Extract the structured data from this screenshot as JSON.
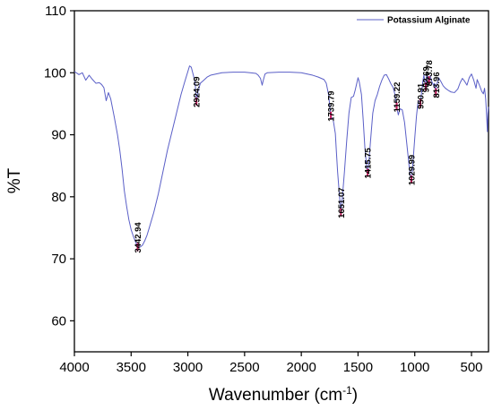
{
  "chart_data": {
    "type": "line",
    "title": "",
    "xlabel_main": "Wavenumber (cm",
    "xlabel_sup": "-1",
    "xlabel_close": ")",
    "ylabel": "%T",
    "xlim": [
      4000,
      350
    ],
    "ylim": [
      55,
      110
    ],
    "x_ticks": [
      4000,
      3500,
      3000,
      2500,
      2000,
      1500,
      1000,
      500
    ],
    "y_ticks": [
      60,
      70,
      80,
      90,
      100,
      110
    ],
    "grid": false,
    "legend_position": "top-right",
    "series": [
      {
        "name": "Potassium Alginate",
        "color": "#5a5fc7",
        "points": [
          [
            4000,
            100.2
          ],
          [
            3960,
            99.7
          ],
          [
            3930,
            100.0
          ],
          [
            3900,
            98.8
          ],
          [
            3870,
            99.6
          ],
          [
            3840,
            98.9
          ],
          [
            3810,
            98.3
          ],
          [
            3780,
            98.4
          ],
          [
            3760,
            98.1
          ],
          [
            3740,
            97.6
          ],
          [
            3720,
            95.5
          ],
          [
            3700,
            96.8
          ],
          [
            3680,
            95.8
          ],
          [
            3650,
            93.0
          ],
          [
            3620,
            90.0
          ],
          [
            3600,
            87.5
          ],
          [
            3580,
            84.5
          ],
          [
            3560,
            81.0
          ],
          [
            3540,
            78.5
          ],
          [
            3520,
            76.3
          ],
          [
            3500,
            74.7
          ],
          [
            3480,
            73.6
          ],
          [
            3460,
            72.7
          ],
          [
            3442.94,
            71.8
          ],
          [
            3420,
            71.9
          ],
          [
            3400,
            72.2
          ],
          [
            3380,
            72.9
          ],
          [
            3360,
            73.8
          ],
          [
            3340,
            75.0
          ],
          [
            3300,
            77.5
          ],
          [
            3260,
            80.5
          ],
          [
            3220,
            84.0
          ],
          [
            3180,
            87.5
          ],
          [
            3140,
            90.5
          ],
          [
            3100,
            93.5
          ],
          [
            3060,
            96.5
          ],
          [
            3030,
            98.4
          ],
          [
            3000,
            100.2
          ],
          [
            2985,
            101.1
          ],
          [
            2970,
            100.9
          ],
          [
            2950,
            99.5
          ],
          [
            2935,
            98.2
          ],
          [
            2924.09,
            95.3
          ],
          [
            2910,
            97.0
          ],
          [
            2890,
            98.3
          ],
          [
            2860,
            98.8
          ],
          [
            2830,
            99.3
          ],
          [
            2800,
            99.6
          ],
          [
            2700,
            100.0
          ],
          [
            2600,
            100.1
          ],
          [
            2500,
            100.1
          ],
          [
            2450,
            100.0
          ],
          [
            2400,
            99.9
          ],
          [
            2380,
            99.6
          ],
          [
            2360,
            99.1
          ],
          [
            2345,
            98.0
          ],
          [
            2335,
            98.8
          ],
          [
            2320,
            99.8
          ],
          [
            2300,
            100.0
          ],
          [
            2200,
            100.1
          ],
          [
            2100,
            100.1
          ],
          [
            2000,
            100.0
          ],
          [
            1950,
            99.8
          ],
          [
            1900,
            99.6
          ],
          [
            1850,
            99.3
          ],
          [
            1800,
            98.9
          ],
          [
            1780,
            98.3
          ],
          [
            1760,
            96.5
          ],
          [
            1739.79,
            93.0
          ],
          [
            1720,
            92.5
          ],
          [
            1700,
            90.2
          ],
          [
            1690,
            87.0
          ],
          [
            1680,
            84.0
          ],
          [
            1665,
            80.5
          ],
          [
            1651.07,
            77.4
          ],
          [
            1640,
            79.5
          ],
          [
            1620,
            84.0
          ],
          [
            1600,
            89.0
          ],
          [
            1580,
            93.5
          ],
          [
            1560,
            96.0
          ],
          [
            1540,
            96.2
          ],
          [
            1525,
            97.2
          ],
          [
            1510,
            98.4
          ],
          [
            1500,
            99.2
          ],
          [
            1490,
            98.6
          ],
          [
            1470,
            96.5
          ],
          [
            1455,
            92.5
          ],
          [
            1440,
            88.0
          ],
          [
            1425,
            85.0
          ],
          [
            1415.75,
            83.8
          ],
          [
            1405,
            85.5
          ],
          [
            1390,
            89.0
          ],
          [
            1370,
            93.5
          ],
          [
            1350,
            95.5
          ],
          [
            1330,
            96.5
          ],
          [
            1310,
            97.8
          ],
          [
            1290,
            98.8
          ],
          [
            1270,
            99.6
          ],
          [
            1250,
            99.7
          ],
          [
            1230,
            99.0
          ],
          [
            1210,
            98.2
          ],
          [
            1190,
            97.6
          ],
          [
            1175,
            96.5
          ],
          [
            1159.22,
            94.5
          ],
          [
            1145,
            93.2
          ],
          [
            1130,
            94.2
          ],
          [
            1110,
            94.0
          ],
          [
            1090,
            92.0
          ],
          [
            1070,
            88.5
          ],
          [
            1050,
            85.0
          ],
          [
            1040,
            83.5
          ],
          [
            1029.99,
            82.7
          ],
          [
            1020,
            84.5
          ],
          [
            1000,
            89.5
          ],
          [
            985,
            93.0
          ],
          [
            970,
            95.5
          ],
          [
            960,
            95.4
          ],
          [
            950.91,
            95.0
          ],
          [
            940,
            96.8
          ],
          [
            930,
            98.5
          ],
          [
            920,
            99.6
          ],
          [
            910,
            98.6
          ],
          [
            902.69,
            97.7
          ],
          [
            895,
            99.8
          ],
          [
            885,
            99.0
          ],
          [
            873.78,
            98.7
          ],
          [
            865,
            99.5
          ],
          [
            850,
            98.6
          ],
          [
            835,
            98.0
          ],
          [
            825,
            98.3
          ],
          [
            813.96,
            96.8
          ],
          [
            805,
            98.2
          ],
          [
            790,
            99.2
          ],
          [
            770,
            98.6
          ],
          [
            750,
            97.9
          ],
          [
            730,
            97.5
          ],
          [
            700,
            97.1
          ],
          [
            680,
            96.9
          ],
          [
            650,
            96.8
          ],
          [
            620,
            97.4
          ],
          [
            600,
            98.4
          ],
          [
            580,
            99.1
          ],
          [
            560,
            98.6
          ],
          [
            540,
            98.0
          ],
          [
            520,
            99.2
          ],
          [
            500,
            99.8
          ],
          [
            480,
            98.8
          ],
          [
            460,
            97.5
          ],
          [
            450,
            98.9
          ],
          [
            430,
            98.0
          ],
          [
            410,
            97.0
          ],
          [
            395,
            96.6
          ],
          [
            385,
            97.5
          ],
          [
            375,
            95.8
          ],
          [
            365,
            92.5
          ],
          [
            360,
            90.5
          ],
          [
            355,
            93.5
          ],
          [
            350,
            94.5
          ]
        ]
      }
    ],
    "peaks": [
      {
        "label": "3442.94",
        "x": 3442.94,
        "y": 71.8
      },
      {
        "label": "2924.09",
        "x": 2924.09,
        "y": 95.3
      },
      {
        "label": "1739.79",
        "x": 1739.79,
        "y": 93.0
      },
      {
        "label": "1651.07",
        "x": 1651.07,
        "y": 77.4
      },
      {
        "label": "1415.75",
        "x": 1415.75,
        "y": 83.8
      },
      {
        "label": "1159.22",
        "x": 1159.22,
        "y": 94.5
      },
      {
        "label": "1029.99",
        "x": 1029.99,
        "y": 82.7
      },
      {
        "label": "950.91",
        "x": 950.91,
        "y": 95.0
      },
      {
        "label": "902.69",
        "x": 902.69,
        "y": 97.7
      },
      {
        "label": "873.78",
        "x": 873.78,
        "y": 98.7
      },
      {
        "label": "813.96",
        "x": 813.96,
        "y": 96.8
      }
    ],
    "peak_marker_color": "#c2185b"
  }
}
